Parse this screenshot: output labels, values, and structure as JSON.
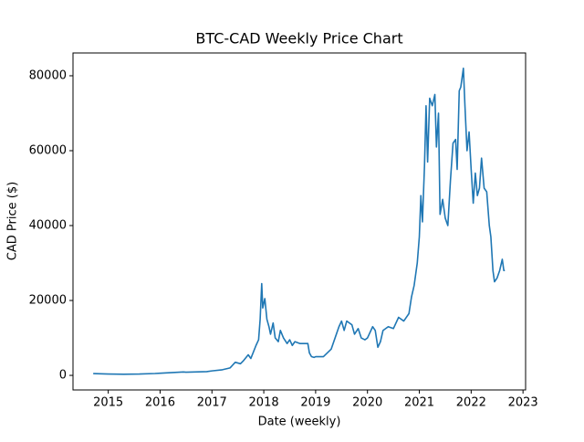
{
  "chart_data": {
    "type": "line",
    "title": "BTC-CAD Weekly Price Chart",
    "x_label": "Date (weekly)",
    "y_label": "CAD Price ($)",
    "x": [
      2014.71,
      2015.0,
      2015.3,
      2015.6,
      2015.9,
      2016.0,
      2016.45,
      2016.5,
      2016.9,
      2017.0,
      2017.2,
      2017.35,
      2017.45,
      2017.55,
      2017.6,
      2017.7,
      2017.75,
      2017.85,
      2017.9,
      2017.93,
      2017.96,
      2017.98,
      2018.02,
      2018.06,
      2018.1,
      2018.13,
      2018.18,
      2018.22,
      2018.28,
      2018.32,
      2018.38,
      2018.45,
      2018.5,
      2018.55,
      2018.6,
      2018.7,
      2018.85,
      2018.88,
      2018.92,
      2018.97,
      2019.0,
      2019.15,
      2019.3,
      2019.4,
      2019.45,
      2019.5,
      2019.55,
      2019.6,
      2019.7,
      2019.75,
      2019.82,
      2019.88,
      2019.95,
      2020.0,
      2020.1,
      2020.15,
      2020.2,
      2020.25,
      2020.3,
      2020.4,
      2020.5,
      2020.6,
      2020.7,
      2020.8,
      2020.85,
      2020.9,
      2020.96,
      2021.0,
      2021.03,
      2021.06,
      2021.1,
      2021.13,
      2021.16,
      2021.2,
      2021.25,
      2021.3,
      2021.33,
      2021.37,
      2021.4,
      2021.45,
      2021.5,
      2021.55,
      2021.6,
      2021.65,
      2021.7,
      2021.73,
      2021.77,
      2021.8,
      2021.85,
      2021.88,
      2021.92,
      2021.96,
      2022.0,
      2022.04,
      2022.08,
      2022.12,
      2022.16,
      2022.2,
      2022.25,
      2022.3,
      2022.35,
      2022.38,
      2022.42,
      2022.45,
      2022.5,
      2022.55,
      2022.6,
      2022.63,
      2022.65
    ],
    "series": [
      {
        "name": "BTC-CAD",
        "color": "#1f77b4",
        "values": [
          480,
          350,
          300,
          350,
          500,
          580,
          900,
          850,
          1000,
          1200,
          1500,
          2000,
          3500,
          3100,
          3800,
          5500,
          4500,
          8000,
          9500,
          15000,
          24500,
          18000,
          20500,
          15000,
          13000,
          11000,
          14000,
          10000,
          9000,
          12000,
          10000,
          8500,
          9500,
          8000,
          9000,
          8500,
          8500,
          6000,
          5000,
          4800,
          5000,
          5000,
          7000,
          11000,
          13000,
          14500,
          12000,
          14500,
          13500,
          11000,
          12500,
          10000,
          9500,
          10000,
          13000,
          12000,
          7500,
          9000,
          12000,
          13000,
          12500,
          15500,
          14500,
          16500,
          21000,
          24000,
          30000,
          37000,
          48000,
          41000,
          56000,
          72000,
          57000,
          74000,
          72000,
          75000,
          61000,
          70000,
          43000,
          47000,
          42000,
          40000,
          52000,
          62000,
          63000,
          55000,
          76000,
          77000,
          82000,
          72000,
          60000,
          65000,
          55000,
          46000,
          54000,
          48000,
          50000,
          58000,
          50000,
          49000,
          40000,
          37000,
          28000,
          25000,
          26000,
          28000,
          31000,
          28000,
          28000
        ]
      }
    ],
    "xlim": [
      2014.32,
      2023.05
    ],
    "xticks": [
      2015,
      2016,
      2017,
      2018,
      2019,
      2020,
      2021,
      2022,
      2023
    ],
    "ylim": [
      -3890,
      86090
    ],
    "yticks": [
      0,
      20000,
      40000,
      60000,
      80000
    ]
  }
}
